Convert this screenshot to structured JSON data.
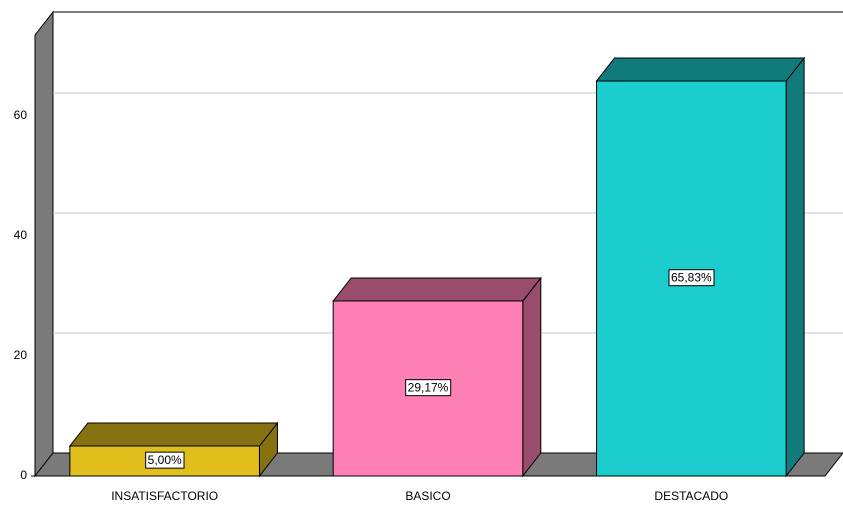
{
  "chart_data": {
    "type": "bar3d",
    "categories": [
      "INSATISFACTORIO",
      "BASICO",
      "DESTACADO"
    ],
    "values": [
      5.0,
      29.17,
      65.83
    ],
    "value_labels": [
      "5,00%",
      "29,17%",
      "65,83%"
    ],
    "colors": [
      "#e0be1b",
      "#ff80b4",
      "#1ccdce"
    ],
    "ylim": [
      0,
      73.5
    ],
    "yticks": [
      0,
      20,
      40,
      60
    ],
    "grid": true
  }
}
